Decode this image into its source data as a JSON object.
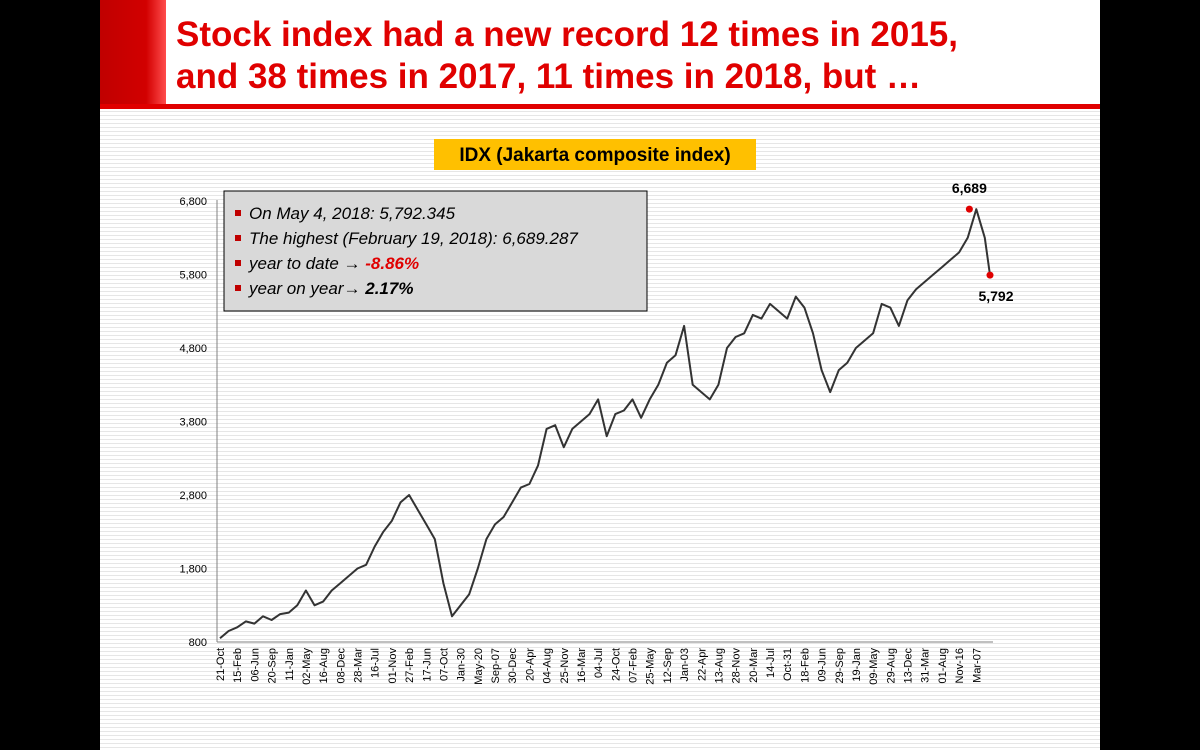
{
  "slide": {
    "title": "Stock index had a new record 12 times in 2015,\nand 38 times in 2017, 11 times in 2018, but …"
  },
  "chart_data": {
    "type": "line",
    "title": "IDX (Jakarta composite index)",
    "title_bg": "#ffc000",
    "line_color": "#333333",
    "marker_color": "#e00000",
    "ylim": [
      800,
      6800
    ],
    "yticks": [
      800,
      1800,
      2800,
      3800,
      4800,
      5800,
      6800
    ],
    "ytick_labels": [
      "800",
      "1,800",
      "2,800",
      "3,800",
      "4,800",
      "5,800",
      "6,800"
    ],
    "xtick_labels": [
      "21-Oct",
      "15-Feb",
      "06-Jun",
      "20-Sep",
      "11-Jan",
      "02-May",
      "16-Aug",
      "08-Dec",
      "28-Mar",
      "16-Jul",
      "01-Nov",
      "27-Feb",
      "17-Jun",
      "07-Oct",
      "Jan-30",
      "May-20",
      "Sep-07",
      "30-Dec",
      "20-Apr",
      "04-Aug",
      "25-Nov",
      "16-Mar",
      "04-Jul",
      "24-Oct",
      "07-Feb",
      "25-May",
      "12-Sep",
      "Jan-03",
      "22-Apr",
      "13-Aug",
      "28-Nov",
      "20-Mar",
      "14-Jul",
      "Oct-31",
      "18-Feb",
      "09-Jun",
      "29-Sep",
      "19-Jan",
      "09-May",
      "29-Aug",
      "13-Dec",
      "31-Mar",
      "01-Aug",
      "Nov-16",
      "Mar-07"
    ],
    "grid": false,
    "series": [
      {
        "x": [
          0,
          0.5,
          1,
          1.5,
          2,
          2.5,
          3,
          3.5,
          4,
          4.5,
          5,
          5.5,
          6,
          6.5,
          7,
          7.5,
          8,
          8.5,
          9,
          9.5,
          10,
          10.5,
          11,
          11.5,
          12,
          12.5,
          13,
          13.5,
          14,
          14.5,
          15,
          15.5,
          16,
          16.5,
          17,
          17.5,
          18,
          18.5,
          19,
          19.5,
          20,
          20.5,
          21,
          21.5,
          22,
          22.5,
          23,
          23.5,
          24,
          24.5,
          25,
          25.5,
          26,
          26.5,
          27,
          27.5,
          28,
          28.5,
          29,
          29.5,
          30,
          30.5,
          31,
          31.5,
          32,
          32.5,
          33,
          33.5,
          34,
          34.5,
          35,
          35.5,
          36,
          36.5,
          37,
          37.5,
          38,
          38.5,
          39,
          39.5,
          40,
          40.5,
          41,
          41.5,
          42,
          42.5,
          43,
          43.5,
          44,
          44.5,
          44.8
        ],
        "values": [
          850,
          950,
          1000,
          1080,
          1050,
          1150,
          1100,
          1180,
          1200,
          1300,
          1500,
          1300,
          1350,
          1500,
          1600,
          1700,
          1800,
          1850,
          2100,
          2300,
          2450,
          2700,
          2800,
          2600,
          2400,
          2200,
          1600,
          1150,
          1300,
          1450,
          1800,
          2200,
          2400,
          2500,
          2700,
          2900,
          2950,
          3200,
          3700,
          3750,
          3450,
          3700,
          3800,
          3900,
          4100,
          3600,
          3900,
          3950,
          4100,
          3850,
          4100,
          4300,
          4600,
          4700,
          5100,
          4300,
          4200,
          4100,
          4300,
          4800,
          4950,
          5000,
          5250,
          5200,
          5400,
          5300,
          5200,
          5500,
          5350,
          5000,
          4500,
          4200,
          4500,
          4600,
          4800,
          4900,
          5000,
          5400,
          5350,
          5100,
          5450,
          5600,
          5700,
          5800,
          5900,
          6000,
          6100,
          6300,
          6689,
          6300,
          5792
        ],
        "name": ""
      }
    ],
    "annotations": {
      "peak_label": "6,689",
      "peak_value": 6689,
      "peak_x": 43.6,
      "end_label": "5,792",
      "end_value": 5792,
      "end_x": 44.8,
      "box_lines": [
        {
          "text": "On May 4, 2018: 5,792.345",
          "value": ""
        },
        {
          "text": "The highest (February 19, 2018): 6,689.287",
          "value": ""
        },
        {
          "text": "year to date → ",
          "value": "-8.86%",
          "value_color": "#e00000"
        },
        {
          "text": "year on year→  ",
          "value": "2.17%",
          "value_color": "#000000"
        }
      ]
    }
  }
}
